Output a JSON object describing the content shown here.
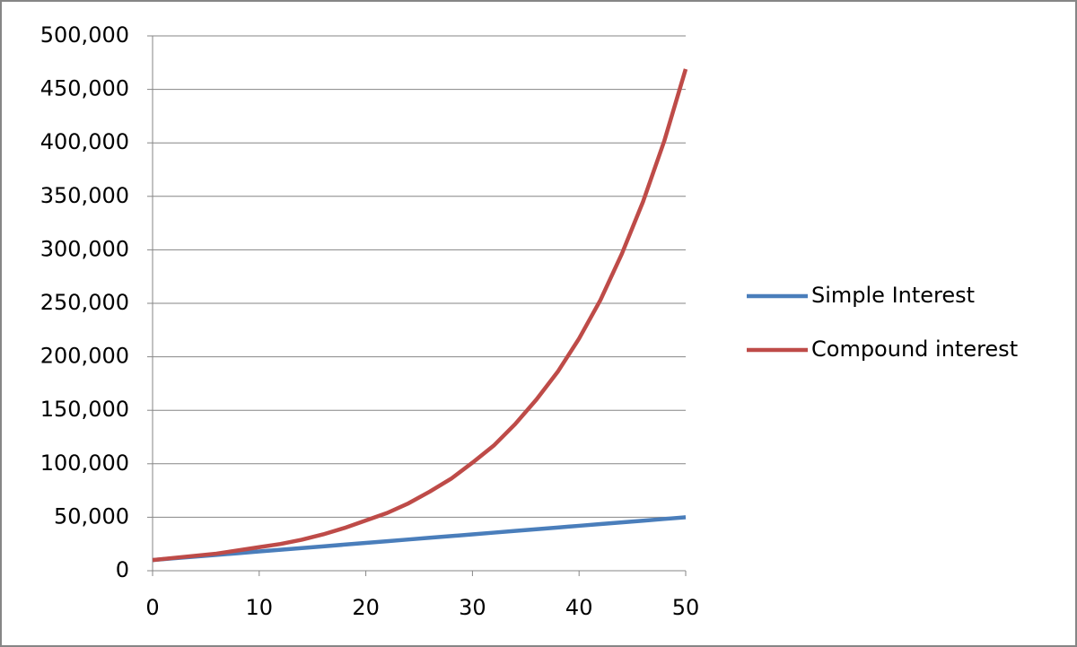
{
  "chart_data": {
    "type": "line",
    "x": [
      0,
      2,
      4,
      6,
      8,
      10,
      12,
      14,
      16,
      18,
      20,
      22,
      24,
      26,
      28,
      30,
      32,
      34,
      36,
      38,
      40,
      42,
      44,
      46,
      48,
      50
    ],
    "series": [
      {
        "name": "Simple Interest",
        "color": "#4a7ebb",
        "values": [
          10000,
          11600,
          13200,
          14800,
          16400,
          18000,
          19600,
          21200,
          22800,
          24400,
          26000,
          27600,
          29200,
          30800,
          32400,
          34000,
          35600,
          37200,
          38800,
          40400,
          42000,
          43600,
          45200,
          46800,
          48400,
          50000
        ]
      },
      {
        "name": "Compound interest",
        "color": "#be4b48",
        "values": [
          10000,
          12000,
          14000,
          16000,
          19000,
          22000,
          25000,
          29000,
          34000,
          40000,
          47000,
          54000,
          63000,
          74000,
          86000,
          101000,
          117000,
          137000,
          160000,
          186000,
          217000,
          253000,
          296000,
          345000,
          402000,
          469000
        ]
      }
    ],
    "xlim": [
      0,
      50
    ],
    "xticks": [
      0,
      10,
      20,
      30,
      40,
      50
    ],
    "ylim": [
      0,
      500000
    ],
    "yticks": [
      0,
      {
        "value": 50000,
        "label": "50,000"
      },
      {
        "value": 100000,
        "label": "100,000"
      },
      {
        "value": 150000,
        "label": "150,000"
      },
      {
        "value": 200000,
        "label": "200,000"
      },
      {
        "value": 250000,
        "label": "250,000"
      },
      {
        "value": 300000,
        "label": "300,000"
      },
      {
        "value": 350000,
        "label": "350,000"
      },
      {
        "value": 400000,
        "label": "400,000"
      },
      {
        "value": 450000,
        "label": "450,000"
      },
      {
        "value": 500000,
        "label": "500,000"
      }
    ],
    "grid": true,
    "legend": "right"
  }
}
